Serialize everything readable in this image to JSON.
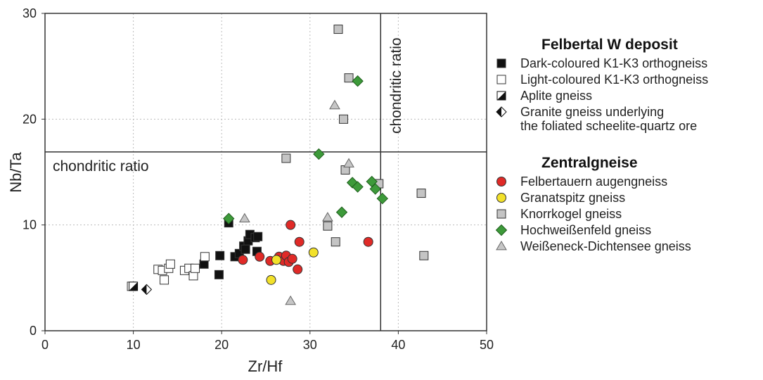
{
  "chart_data": {
    "type": "scatter",
    "xlabel": "Zr/Hf",
    "ylabel": "Nb/Ta",
    "xlim": [
      0,
      50
    ],
    "ylim": [
      0,
      30
    ],
    "xticks": [
      "0",
      "10",
      "20",
      "30",
      "40",
      "50"
    ],
    "yticks": [
      "0",
      "10",
      "20",
      "30"
    ],
    "grid": "dotted at 10 and 20",
    "reference_lines": [
      {
        "orientation": "horizontal",
        "value": 16.9,
        "label": "chondritic ratio"
      },
      {
        "orientation": "vertical",
        "value": 38.0,
        "label": "chondritic ratio"
      }
    ],
    "legend_groups": [
      {
        "heading": "Felbertal W deposit",
        "series": [
          {
            "name": "Dark-coloured K1-K3 orthogneiss",
            "marker": "square",
            "fill": "#111111",
            "points": [
              [
                19.7,
                5.3
              ],
              [
                19.8,
                7.1
              ],
              [
                18.0,
                6.3
              ],
              [
                20.8,
                10.2
              ],
              [
                21.5,
                7.0
              ],
              [
                22.0,
                7.3
              ],
              [
                22.5,
                8.0
              ],
              [
                23.0,
                8.5
              ],
              [
                23.2,
                9.1
              ],
              [
                23.8,
                8.8
              ],
              [
                24.1,
                8.9
              ],
              [
                24.0,
                7.5
              ],
              [
                22.7,
                7.7
              ]
            ]
          },
          {
            "name": "Light-coloured K1-K3 orthogneiss",
            "marker": "square",
            "fill": "#ffffff",
            "points": [
              [
                9.8,
                4.2
              ],
              [
                12.8,
                5.8
              ],
              [
                13.3,
                5.7
              ],
              [
                13.5,
                4.8
              ],
              [
                14.0,
                5.9
              ],
              [
                14.2,
                6.3
              ],
              [
                15.8,
                5.7
              ],
              [
                16.3,
                5.9
              ],
              [
                16.8,
                5.2
              ],
              [
                17.0,
                5.9
              ],
              [
                18.1,
                7.0
              ]
            ]
          },
          {
            "name": "Aplite gneiss",
            "marker": "half-square",
            "fill": "#111111",
            "points": [
              [
                10.0,
                4.2
              ]
            ]
          },
          {
            "name": "Granite gneiss underlying\nthe foliated scheelite-quartz ore",
            "marker": "half-diamond",
            "fill": "#111111",
            "points": [
              [
                11.5,
                3.9
              ]
            ]
          }
        ]
      },
      {
        "heading": "Zentralgneise",
        "series": [
          {
            "name": "Felbertauern augengneiss",
            "marker": "circle",
            "fill": "#e02a27",
            "points": [
              [
                22.4,
                6.7
              ],
              [
                24.3,
                7.0
              ],
              [
                25.5,
                6.6
              ],
              [
                26.5,
                7.0
              ],
              [
                27.0,
                6.6
              ],
              [
                27.3,
                7.1
              ],
              [
                27.6,
                6.5
              ],
              [
                28.0,
                6.8
              ],
              [
                28.6,
                5.8
              ],
              [
                27.8,
                10.0
              ],
              [
                28.8,
                8.4
              ],
              [
                36.6,
                8.4
              ]
            ]
          },
          {
            "name": "Granatspitz gneiss",
            "marker": "circle",
            "fill": "#f2e12a",
            "points": [
              [
                25.6,
                4.8
              ],
              [
                26.2,
                6.7
              ],
              [
                30.4,
                7.4
              ]
            ]
          },
          {
            "name": "Knorrkogel gneiss",
            "marker": "square",
            "fill": "#c4c4c4",
            "points": [
              [
                33.2,
                28.5
              ],
              [
                34.4,
                23.9
              ],
              [
                33.8,
                20.0
              ],
              [
                27.3,
                16.3
              ],
              [
                34.0,
                15.2
              ],
              [
                37.8,
                13.9
              ],
              [
                32.0,
                9.9
              ],
              [
                32.9,
                8.4
              ],
              [
                42.6,
                13.0
              ],
              [
                42.9,
                7.1
              ]
            ]
          },
          {
            "name": "Hochweißenfeld gneiss",
            "marker": "diamond",
            "fill": "#3d9a3a",
            "points": [
              [
                35.4,
                23.6
              ],
              [
                31.0,
                16.7
              ],
              [
                34.8,
                14.0
              ],
              [
                35.4,
                13.6
              ],
              [
                37.0,
                14.1
              ],
              [
                37.4,
                13.4
              ],
              [
                38.2,
                12.5
              ],
              [
                33.6,
                11.2
              ],
              [
                20.8,
                10.6
              ]
            ]
          },
          {
            "name": "Weißeneck-Dichtensee gneiss",
            "marker": "triangle",
            "fill": "#c6c6c6",
            "points": [
              [
                32.8,
                21.3
              ],
              [
                34.4,
                15.8
              ],
              [
                32.0,
                10.7
              ],
              [
                22.6,
                10.6
              ],
              [
                27.8,
                2.8
              ]
            ]
          }
        ]
      }
    ]
  }
}
